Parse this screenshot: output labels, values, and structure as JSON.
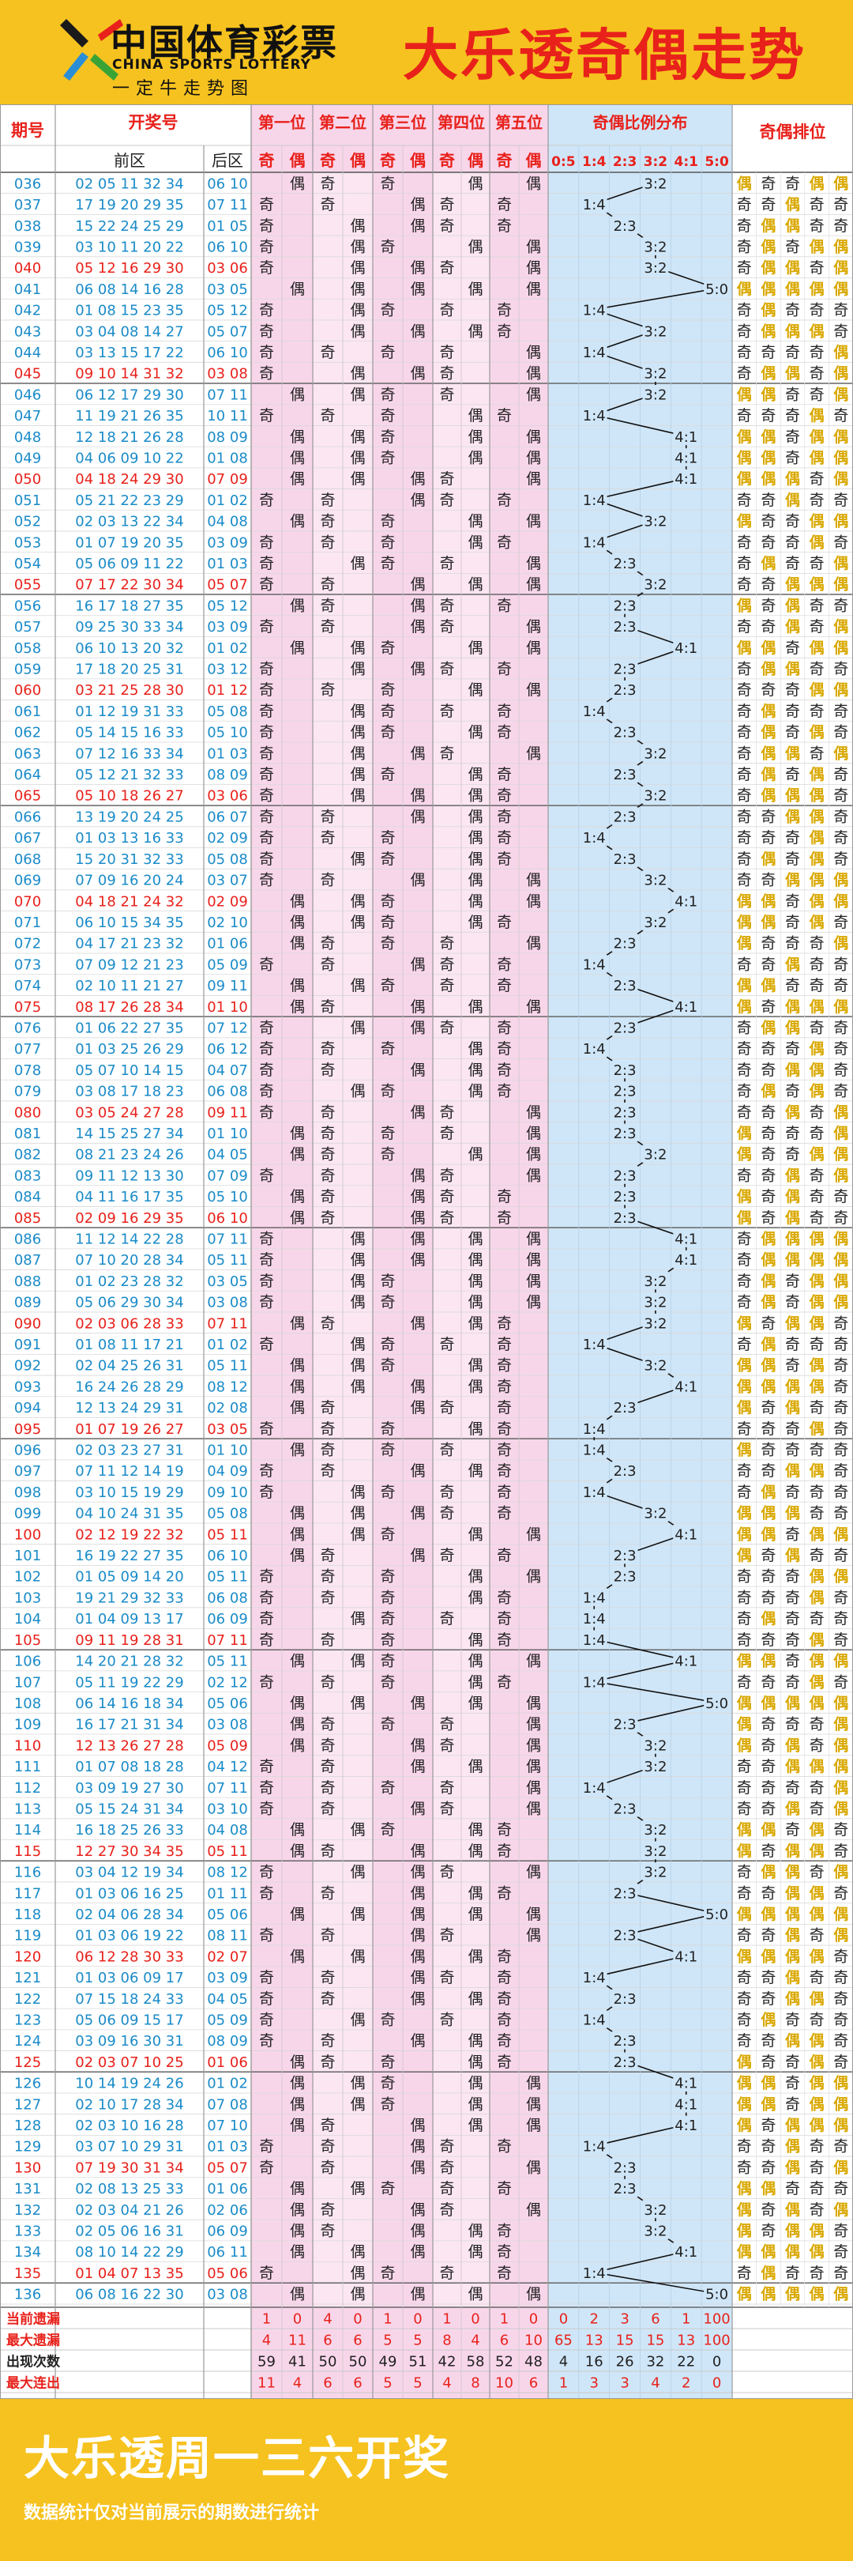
{
  "header": {
    "brand_cn": "中国体育彩票",
    "brand_en": "CHINA SPORTS LOTTERY",
    "brand_slogan": "一定牛走势图",
    "title": "大乐透奇偶走势"
  },
  "table": {
    "col_issue": "期号",
    "col_draw": "开奖号",
    "col_front": "前区",
    "col_back": "后区",
    "positions": [
      "第一位",
      "第二位",
      "第三位",
      "第四位",
      "第五位"
    ],
    "odd": "奇",
    "even": "偶",
    "col_ratio": "奇偶比例分布",
    "ratio_labels": [
      "0:5",
      "1:4",
      "2:3",
      "3:2",
      "4:1",
      "5:0"
    ],
    "col_pattern": "奇偶排位"
  },
  "chart_data": {
    "type": "table",
    "title": "大乐透奇偶走势",
    "ratio_categories": [
      "0:5",
      "1:4",
      "2:3",
      "3:2",
      "4:1",
      "5:0"
    ],
    "draws": [
      {
        "issue": "036",
        "front": "02 05 11 32 34",
        "back": "06 10"
      },
      {
        "issue": "037",
        "front": "17 19 20 29 35",
        "back": "07 11"
      },
      {
        "issue": "038",
        "front": "15 22 24 25 29",
        "back": "01 05"
      },
      {
        "issue": "039",
        "front": "03 10 11 20 22",
        "back": "06 10"
      },
      {
        "issue": "040",
        "front": "05 12 16 29 30",
        "back": "03 06"
      },
      {
        "issue": "041",
        "front": "06 08 14 16 28",
        "back": "03 05"
      },
      {
        "issue": "042",
        "front": "01 08 15 23 35",
        "back": "05 12"
      },
      {
        "issue": "043",
        "front": "03 04 08 14 27",
        "back": "05 07"
      },
      {
        "issue": "044",
        "front": "03 13 15 17 22",
        "back": "06 10"
      },
      {
        "issue": "045",
        "front": "09 10 14 31 32",
        "back": "03 08"
      },
      {
        "issue": "046",
        "front": "06 12 17 29 30",
        "back": "07 11"
      },
      {
        "issue": "047",
        "front": "11 19 21 26 35",
        "back": "10 11"
      },
      {
        "issue": "048",
        "front": "12 18 21 26 28",
        "back": "08 09"
      },
      {
        "issue": "049",
        "front": "04 06 09 10 22",
        "back": "01 08"
      },
      {
        "issue": "050",
        "front": "04 18 24 29 30",
        "back": "07 09"
      },
      {
        "issue": "051",
        "front": "05 21 22 23 29",
        "back": "01 02"
      },
      {
        "issue": "052",
        "front": "02 03 13 22 34",
        "back": "04 08"
      },
      {
        "issue": "053",
        "front": "01 07 19 20 35",
        "back": "03 09"
      },
      {
        "issue": "054",
        "front": "05 06 09 11 22",
        "back": "01 03"
      },
      {
        "issue": "055",
        "front": "07 17 22 30 34",
        "back": "05 07"
      },
      {
        "issue": "056",
        "front": "16 17 18 27 35",
        "back": "05 12"
      },
      {
        "issue": "057",
        "front": "09 25 30 33 34",
        "back": "03 09"
      },
      {
        "issue": "058",
        "front": "06 10 13 20 32",
        "back": "01 02"
      },
      {
        "issue": "059",
        "front": "17 18 20 25 31",
        "back": "03 12"
      },
      {
        "issue": "060",
        "front": "03 21 25 28 30",
        "back": "01 12"
      },
      {
        "issue": "061",
        "front": "01 12 19 31 33",
        "back": "05 08"
      },
      {
        "issue": "062",
        "front": "05 14 15 16 33",
        "back": "05 10"
      },
      {
        "issue": "063",
        "front": "07 12 16 33 34",
        "back": "01 03"
      },
      {
        "issue": "064",
        "front": "05 12 21 32 33",
        "back": "08 09"
      },
      {
        "issue": "065",
        "front": "05 10 18 26 27",
        "back": "03 06"
      },
      {
        "issue": "066",
        "front": "13 19 20 24 25",
        "back": "06 07"
      },
      {
        "issue": "067",
        "front": "01 03 13 16 33",
        "back": "02 09"
      },
      {
        "issue": "068",
        "front": "15 20 31 32 33",
        "back": "05 08"
      },
      {
        "issue": "069",
        "front": "07 09 16 20 24",
        "back": "03 07"
      },
      {
        "issue": "070",
        "front": "04 18 21 24 32",
        "back": "02 09"
      },
      {
        "issue": "071",
        "front": "06 10 15 34 35",
        "back": "02 10"
      },
      {
        "issue": "072",
        "front": "04 17 21 23 32",
        "back": "01 06"
      },
      {
        "issue": "073",
        "front": "07 09 12 21 23",
        "back": "05 09"
      },
      {
        "issue": "074",
        "front": "02 10 11 21 27",
        "back": "09 11"
      },
      {
        "issue": "075",
        "front": "08 17 26 28 34",
        "back": "01 10"
      },
      {
        "issue": "076",
        "front": "01 06 22 27 35",
        "back": "07 12"
      },
      {
        "issue": "077",
        "front": "01 03 25 26 29",
        "back": "06 12"
      },
      {
        "issue": "078",
        "front": "05 07 10 14 15",
        "back": "04 07"
      },
      {
        "issue": "079",
        "front": "03 08 17 18 23",
        "back": "06 08"
      },
      {
        "issue": "080",
        "front": "03 05 24 27 28",
        "back": "09 11"
      },
      {
        "issue": "081",
        "front": "14 15 25 27 34",
        "back": "01 10"
      },
      {
        "issue": "082",
        "front": "08 21 23 24 26",
        "back": "04 05"
      },
      {
        "issue": "083",
        "front": "09 11 12 13 30",
        "back": "07 09"
      },
      {
        "issue": "084",
        "front": "04 11 16 17 35",
        "back": "05 10"
      },
      {
        "issue": "085",
        "front": "02 09 16 29 35",
        "back": "06 10"
      },
      {
        "issue": "086",
        "front": "11 12 14 22 28",
        "back": "07 11"
      },
      {
        "issue": "087",
        "front": "07 10 20 28 34",
        "back": "05 11"
      },
      {
        "issue": "088",
        "front": "01 02 23 28 32",
        "back": "03 05"
      },
      {
        "issue": "089",
        "front": "05 06 29 30 34",
        "back": "03 08"
      },
      {
        "issue": "090",
        "front": "02 03 06 28 33",
        "back": "07 11"
      },
      {
        "issue": "091",
        "front": "01 08 11 17 21",
        "back": "01 02"
      },
      {
        "issue": "092",
        "front": "02 04 25 26 31",
        "back": "05 11"
      },
      {
        "issue": "093",
        "front": "16 24 26 28 29",
        "back": "08 12"
      },
      {
        "issue": "094",
        "front": "12 13 24 29 31",
        "back": "02 08"
      },
      {
        "issue": "095",
        "front": "01 07 19 26 27",
        "back": "03 05"
      },
      {
        "issue": "096",
        "front": "02 03 23 27 31",
        "back": "01 10"
      },
      {
        "issue": "097",
        "front": "07 11 12 14 19",
        "back": "04 09"
      },
      {
        "issue": "098",
        "front": "03 10 15 19 29",
        "back": "09 10"
      },
      {
        "issue": "099",
        "front": "04 10 24 31 35",
        "back": "05 08"
      },
      {
        "issue": "100",
        "front": "02 12 19 22 32",
        "back": "05 11"
      },
      {
        "issue": "101",
        "front": "16 19 22 27 35",
        "back": "06 10"
      },
      {
        "issue": "102",
        "front": "01 05 09 14 20",
        "back": "05 11"
      },
      {
        "issue": "103",
        "front": "19 21 29 32 33",
        "back": "06 08"
      },
      {
        "issue": "104",
        "front": "01 04 09 13 17",
        "back": "06 09"
      },
      {
        "issue": "105",
        "front": "09 11 19 28 31",
        "back": "07 11"
      },
      {
        "issue": "106",
        "front": "14 20 21 28 32",
        "back": "05 11"
      },
      {
        "issue": "107",
        "front": "05 11 19 22 29",
        "back": "02 12"
      },
      {
        "issue": "108",
        "front": "06 14 16 18 34",
        "back": "05 06"
      },
      {
        "issue": "109",
        "front": "16 17 21 31 34",
        "back": "03 08"
      },
      {
        "issue": "110",
        "front": "12 13 26 27 28",
        "back": "05 09"
      },
      {
        "issue": "111",
        "front": "01 07 08 18 28",
        "back": "04 12"
      },
      {
        "issue": "112",
        "front": "03 09 19 27 30",
        "back": "07 11"
      },
      {
        "issue": "113",
        "front": "05 15 24 31 34",
        "back": "03 10"
      },
      {
        "issue": "114",
        "front": "16 18 25 26 33",
        "back": "04 08"
      },
      {
        "issue": "115",
        "front": "12 27 30 34 35",
        "back": "05 11"
      },
      {
        "issue": "116",
        "front": "03 04 12 19 34",
        "back": "08 12"
      },
      {
        "issue": "117",
        "front": "01 03 06 16 25",
        "back": "01 11"
      },
      {
        "issue": "118",
        "front": "02 04 06 28 34",
        "back": "05 06"
      },
      {
        "issue": "119",
        "front": "01 03 06 19 22",
        "back": "08 11"
      },
      {
        "issue": "120",
        "front": "06 12 28 30 33",
        "back": "02 07"
      },
      {
        "issue": "121",
        "front": "01 03 06 09 17",
        "back": "03 09"
      },
      {
        "issue": "122",
        "front": "07 15 18 24 33",
        "back": "04 05"
      },
      {
        "issue": "123",
        "front": "05 06 09 15 17",
        "back": "05 09"
      },
      {
        "issue": "124",
        "front": "03 09 16 30 31",
        "back": "08 09"
      },
      {
        "issue": "125",
        "front": "02 03 07 10 25",
        "back": "01 06"
      },
      {
        "issue": "126",
        "front": "10 14 19 24 26",
        "back": "01 02"
      },
      {
        "issue": "127",
        "front": "02 10 17 28 34",
        "back": "07 08"
      },
      {
        "issue": "128",
        "front": "02 03 10 16 28",
        "back": "07 10"
      },
      {
        "issue": "129",
        "front": "03 07 10 29 31",
        "back": "01 03"
      },
      {
        "issue": "130",
        "front": "07 19 30 31 34",
        "back": "05 07"
      },
      {
        "issue": "131",
        "front": "02 08 13 25 33",
        "back": "01 06"
      },
      {
        "issue": "132",
        "front": "02 03 04 21 26",
        "back": "02 06"
      },
      {
        "issue": "133",
        "front": "02 05 06 16 31",
        "back": "06 09"
      },
      {
        "issue": "134",
        "front": "08 10 14 22 29",
        "back": "06 11"
      },
      {
        "issue": "135",
        "front": "01 04 07 13 35",
        "back": "05 06"
      },
      {
        "issue": "136",
        "front": "06 08 16 22 30",
        "back": "03 08"
      }
    ],
    "stats": [
      {
        "label": "当前遗漏",
        "values": [
          "1",
          "0",
          "4",
          "0",
          "1",
          "0",
          "1",
          "0",
          "1",
          "0",
          "0",
          "2",
          "3",
          "6",
          "1",
          "100"
        ]
      },
      {
        "label": "最大遗漏",
        "values": [
          "4",
          "11",
          "6",
          "6",
          "5",
          "5",
          "8",
          "4",
          "6",
          "10",
          "65",
          "13",
          "15",
          "15",
          "13",
          "100"
        ]
      },
      {
        "label": "出现次数",
        "values": [
          "59",
          "41",
          "50",
          "50",
          "49",
          "51",
          "42",
          "58",
          "52",
          "48",
          "4",
          "16",
          "26",
          "32",
          "22",
          "0"
        ]
      },
      {
        "label": "最大连出",
        "values": [
          "11",
          "4",
          "6",
          "6",
          "5",
          "5",
          "4",
          "8",
          "10",
          "6",
          "1",
          "3",
          "3",
          "4",
          "2",
          "0"
        ]
      }
    ]
  },
  "footer": {
    "title": "大乐透周一三六开奖",
    "note": "数据统计仅对当前展示的期数进行统计"
  }
}
